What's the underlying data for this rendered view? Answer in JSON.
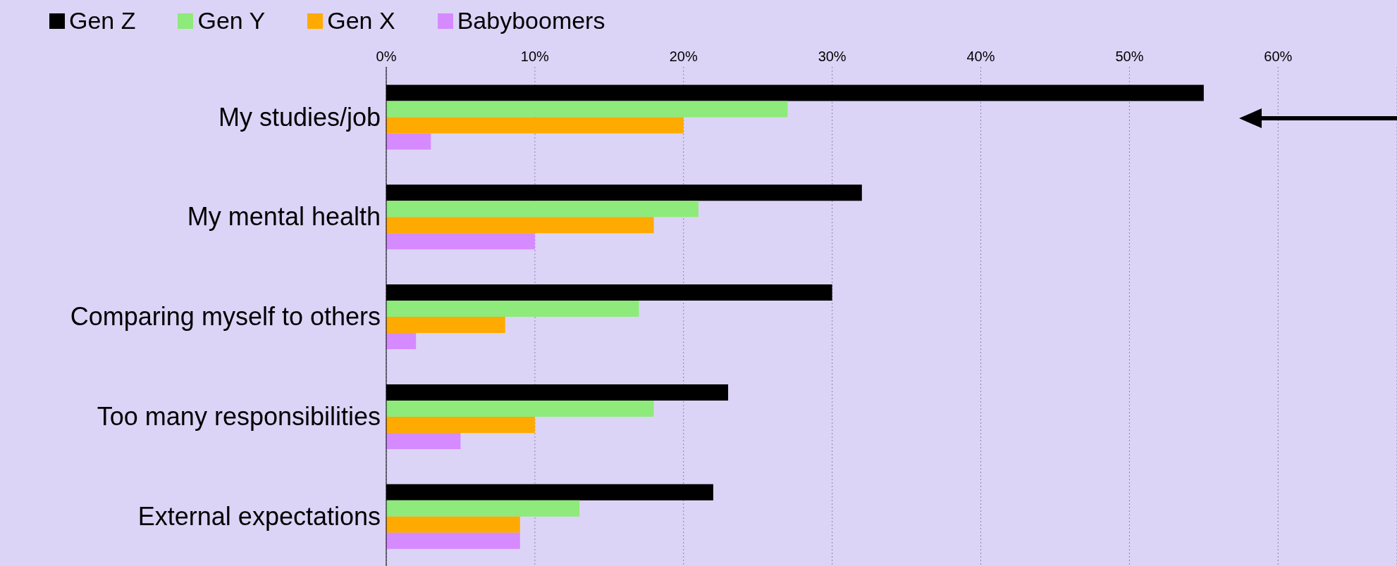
{
  "chart_data": {
    "type": "bar",
    "orientation": "horizontal",
    "categories": [
      "My studies/job",
      "My mental health",
      "Comparing myself to others",
      "Too many responsibilities",
      "External expectations"
    ],
    "series": [
      {
        "name": "Gen Z",
        "color": "#000000",
        "values": [
          55,
          32,
          30,
          23,
          22
        ]
      },
      {
        "name": "Gen Y",
        "color": "#8eea7a",
        "values": [
          27,
          21,
          17,
          18,
          13
        ]
      },
      {
        "name": "Gen X",
        "color": "#ffaa00",
        "values": [
          20,
          18,
          8,
          10,
          9
        ]
      },
      {
        "name": "Babyboomers",
        "color": "#d58aff",
        "values": [
          3,
          10,
          2,
          5,
          9
        ]
      }
    ],
    "xlim": [
      0,
      68
    ],
    "xticks": [
      {
        "value": 0,
        "label": "0%"
      },
      {
        "value": 10,
        "label": "10%"
      },
      {
        "value": 20,
        "label": "20%"
      },
      {
        "value": 30,
        "label": "30%"
      },
      {
        "value": 40,
        "label": "40%"
      },
      {
        "value": 50,
        "label": "50%"
      },
      {
        "value": 60,
        "label": "60%"
      }
    ],
    "grid": "x",
    "legend": "top left"
  }
}
